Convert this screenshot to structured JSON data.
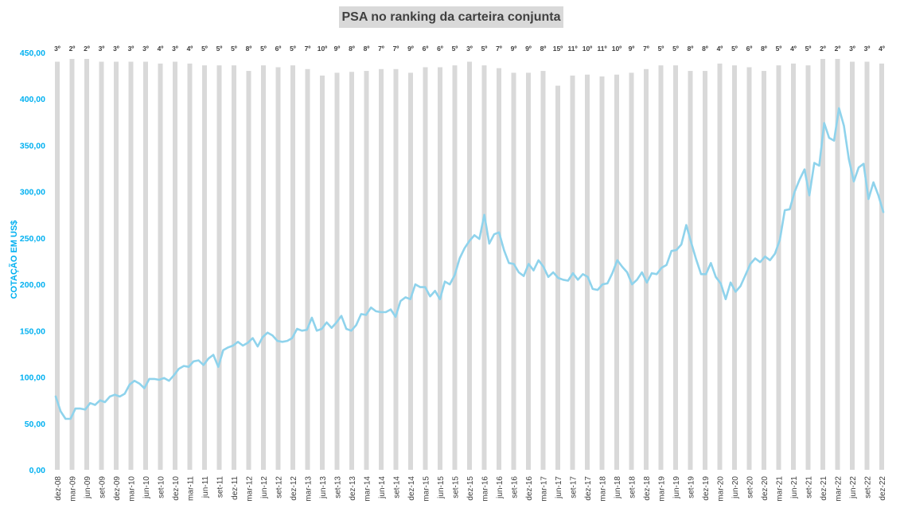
{
  "colors": {
    "bar": "#d9d9d9",
    "line": "#8fd3ec",
    "axis_text": "#00b0f0",
    "rank_text": "#404040",
    "tick_text": "#404040"
  },
  "chart_data": {
    "type": "bar+line",
    "title": "PSA no ranking da carteira conjunta",
    "ylabel": "COTAÇÃO EM US$",
    "ylim": [
      0,
      450
    ],
    "yticks": [
      "0,00",
      "50,00",
      "100,00",
      "150,00",
      "200,00",
      "250,00",
      "300,00",
      "350,00",
      "400,00",
      "450,00"
    ],
    "grid": false,
    "x_tick_labels": [
      "dez-08",
      "mar-09",
      "jun-09",
      "set-09",
      "dez-09",
      "mar-10",
      "jun-10",
      "set-10",
      "dez-10",
      "mar-11",
      "jun-11",
      "set-11",
      "dez-11",
      "mar-12",
      "jun-12",
      "set-12",
      "dez-12",
      "mar-13",
      "jun-13",
      "set-13",
      "dez-13",
      "mar-14",
      "jun-14",
      "set-14",
      "dez-14",
      "mar-15",
      "jun-15",
      "set-15",
      "dez-15",
      "mar-16",
      "jun-16",
      "set-16",
      "dez-16",
      "mar-17",
      "jun-17",
      "set-17",
      "dez-17",
      "mar-18",
      "jun-18",
      "set-18",
      "dez-18",
      "mar-19",
      "jun-19",
      "set-19",
      "dez-19",
      "mar-20",
      "jun-20",
      "set-20",
      "dez-20",
      "mar-21",
      "jun-21",
      "set-21",
      "dez-21",
      "mar-22",
      "jun-22",
      "set-22",
      "dez-22"
    ],
    "rank_labels": [
      "3º",
      "2º",
      "2º",
      "3º",
      "3º",
      "3º",
      "3º",
      "4º",
      "3º",
      "4º",
      "5º",
      "5º",
      "5º",
      "8º",
      "5º",
      "6º",
      "5º",
      "7º",
      "10º",
      "9º",
      "8º",
      "8º",
      "7º",
      "7º",
      "9º",
      "6º",
      "6º",
      "5º",
      "3º",
      "5º",
      "7º",
      "9º",
      "9º",
      "8º",
      "15º",
      "11º",
      "10º",
      "11º",
      "10º",
      "9º",
      "7º",
      "5º",
      "5º",
      "8º",
      "8º",
      "4º",
      "5º",
      "6º",
      "8º",
      "5º",
      "4º",
      "5º",
      "2º",
      "2º",
      "3º",
      "3º",
      "4º"
    ],
    "series": [
      {
        "type": "line",
        "values": [
          79,
          63,
          55,
          55,
          66,
          66,
          65,
          72,
          70,
          75,
          73,
          79,
          81,
          79,
          82,
          92,
          96,
          93,
          88,
          98,
          98,
          97,
          99,
          96,
          102,
          109,
          112,
          111,
          117,
          118,
          113,
          120,
          124,
          111,
          129,
          132,
          134,
          138,
          134,
          137,
          142,
          133,
          143,
          148,
          145,
          139,
          138,
          139,
          142,
          152,
          150,
          151,
          164,
          150,
          152,
          159,
          153,
          159,
          166,
          152,
          150,
          156,
          168,
          167,
          175,
          171,
          170,
          170,
          173,
          165,
          182,
          186,
          184,
          200,
          197,
          197,
          187,
          193,
          184,
          203,
          200,
          210,
          228,
          239,
          247,
          253,
          249,
          275,
          244,
          254,
          256,
          237,
          223,
          222,
          213,
          209,
          222,
          215,
          226,
          219,
          208,
          213,
          207,
          205,
          204,
          212,
          205,
          211,
          208,
          195,
          194,
          200,
          201,
          212,
          226,
          219,
          213,
          200,
          205,
          213,
          202,
          212,
          211,
          218,
          221,
          236,
          237,
          243,
          264,
          245,
          227,
          211,
          211,
          223,
          208,
          201,
          184,
          202,
          192,
          198,
          210,
          222,
          228,
          224,
          230,
          226,
          233,
          248,
          280,
          281,
          300,
          313,
          324,
          296,
          331,
          328,
          374,
          358,
          355,
          390,
          371,
          335,
          311,
          326,
          330,
          292,
          310,
          296,
          278
        ]
      }
    ]
  }
}
